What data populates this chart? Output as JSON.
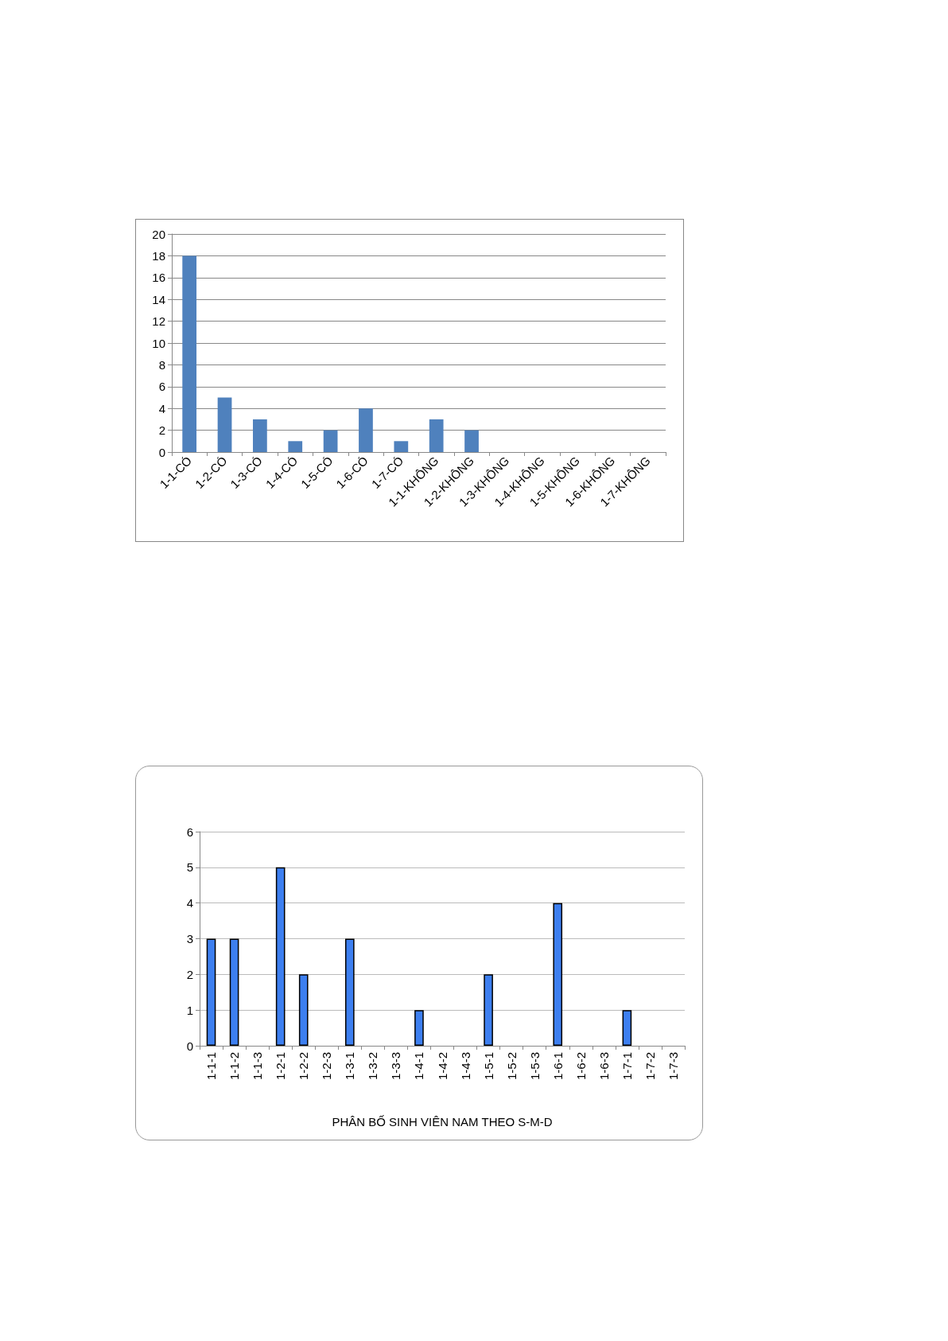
{
  "chart_data": [
    {
      "type": "bar",
      "categories": [
        "1-1-CÓ",
        "1-2-CÓ",
        "1-3-CÓ",
        "1-4-CÓ",
        "1-5-CÓ",
        "1-6-CÓ",
        "1-7-CÓ",
        "1-1-KHÔNG",
        "1-2-KHÔNG",
        "1-3-KHÔNG",
        "1-4-KHÔNG",
        "1-5-KHÔNG",
        "1-6-KHÔNG",
        "1-7-KHÔNG"
      ],
      "values": [
        18,
        5,
        3,
        1,
        2,
        4,
        1,
        3,
        2,
        0,
        0,
        0,
        0,
        0
      ],
      "color": "#4f81bd",
      "ylim": [
        0,
        20
      ],
      "yticks": [
        0,
        2,
        4,
        6,
        8,
        10,
        12,
        14,
        16,
        18,
        20
      ],
      "grid": "y"
    },
    {
      "type": "bar",
      "categories": [
        "1-1-1",
        "1-1-2",
        "1-1-3",
        "1-2-1",
        "1-2-2",
        "1-2-3",
        "1-3-1",
        "1-3-2",
        "1-3-3",
        "1-4-1",
        "1-4-2",
        "1-4-3",
        "1-5-1",
        "1-5-2",
        "1-5-3",
        "1-6-1",
        "1-6-2",
        "1-6-3",
        "1-7-1",
        "1-7-2",
        "1-7-3"
      ],
      "values": [
        3,
        3,
        0,
        5,
        2,
        0,
        3,
        0,
        0,
        1,
        0,
        0,
        2,
        0,
        0,
        4,
        0,
        0,
        1,
        0,
        0
      ],
      "color": "#3d7ff0",
      "xlabel": "PHÂN BỐ SINH VIÊN NAM THEO S-M-D",
      "ylim": [
        0,
        6
      ],
      "yticks": [
        0,
        1,
        2,
        3,
        4,
        5,
        6
      ],
      "grid": "y"
    }
  ]
}
